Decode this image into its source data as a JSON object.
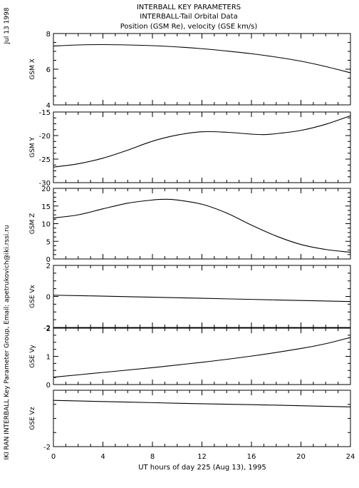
{
  "side_text": {
    "date": "Jul 13 1998",
    "credit": "IKI RAN INTERBALL Key Parameter Group, Email: apetrukovich@iki.rssi.ru"
  },
  "titles": {
    "line1": "INTERBALL KEY PARAMETERS",
    "line2": "INTERBALL-Tail Orbital Data",
    "line3": "Position (GSM Re), velocity (GSE km/s)"
  },
  "chart_data": {
    "type": "line",
    "xlabel": "UT hours of day 225 (Aug 13), 1995",
    "xlim": [
      0,
      24
    ],
    "xticks": [
      0,
      4,
      8,
      12,
      16,
      20,
      24
    ],
    "grid": false,
    "panels": [
      {
        "ylabel": "GSM X",
        "ylim": [
          4,
          8
        ],
        "yticks": [
          4,
          6,
          8
        ],
        "ytick_labels": [
          "4",
          "6",
          "8"
        ],
        "x": [
          0,
          2,
          4,
          6,
          8,
          10,
          12,
          14,
          16,
          18,
          20,
          22,
          24
        ],
        "y": [
          7.3,
          7.36,
          7.38,
          7.36,
          7.32,
          7.25,
          7.15,
          7.02,
          6.87,
          6.68,
          6.45,
          6.15,
          5.8
        ]
      },
      {
        "ylabel": "GSM Y",
        "ylim": [
          -30,
          -15
        ],
        "yticks": [
          -30,
          -25,
          -20,
          -15
        ],
        "ytick_labels": [
          "-30",
          "-25",
          "-20",
          "-15"
        ],
        "x": [
          0,
          2,
          4,
          6,
          8,
          10,
          12,
          14,
          16,
          17,
          18,
          20,
          22,
          24
        ],
        "y": [
          -26.7,
          -26.0,
          -24.8,
          -23.1,
          -21.2,
          -19.9,
          -19.2,
          -19.3,
          -19.7,
          -19.8,
          -19.6,
          -18.9,
          -17.6,
          -15.8
        ]
      },
      {
        "ylabel": "GSM Z",
        "ylim": [
          0,
          20
        ],
        "yticks": [
          0,
          5,
          10,
          15,
          20
        ],
        "ytick_labels": [
          "0",
          "5",
          "10",
          "15",
          "20"
        ],
        "x": [
          0,
          2,
          4,
          6,
          8,
          9,
          10,
          12,
          14,
          16,
          18,
          20,
          22,
          24
        ],
        "y": [
          11.6,
          12.5,
          14.2,
          15.8,
          16.7,
          16.9,
          16.7,
          15.5,
          13.0,
          9.6,
          6.5,
          4.1,
          2.7,
          1.9
        ]
      },
      {
        "ylabel": "GSE Vx",
        "ylim": [
          -2,
          2
        ],
        "yticks": [
          -2,
          0,
          2
        ],
        "ytick_labels": [
          "-2",
          "0",
          "2"
        ],
        "x": [
          0,
          4,
          8,
          12,
          16,
          20,
          24
        ],
        "y": [
          0.08,
          0.02,
          -0.05,
          -0.12,
          -0.19,
          -0.26,
          -0.33
        ]
      },
      {
        "ylabel": "GSE Vy",
        "ylim": [
          0,
          2
        ],
        "yticks": [
          0,
          1,
          2
        ],
        "ytick_labels": [
          "0",
          "1",
          "2"
        ],
        "x": [
          0,
          4,
          8,
          12,
          16,
          20,
          22,
          24
        ],
        "y": [
          0.26,
          0.43,
          0.6,
          0.79,
          1.01,
          1.28,
          1.45,
          1.67
        ]
      },
      {
        "ylabel": "GSE Vz",
        "ylim": [
          -2,
          0
        ],
        "yticks": [
          -2,
          0
        ],
        "ytick_labels": [
          "-2",
          ""
        ],
        "x": [
          0,
          4,
          8,
          12,
          16,
          20,
          24
        ],
        "y": [
          -0.36,
          -0.4,
          -0.44,
          -0.48,
          -0.51,
          -0.55,
          -0.59
        ]
      }
    ]
  }
}
